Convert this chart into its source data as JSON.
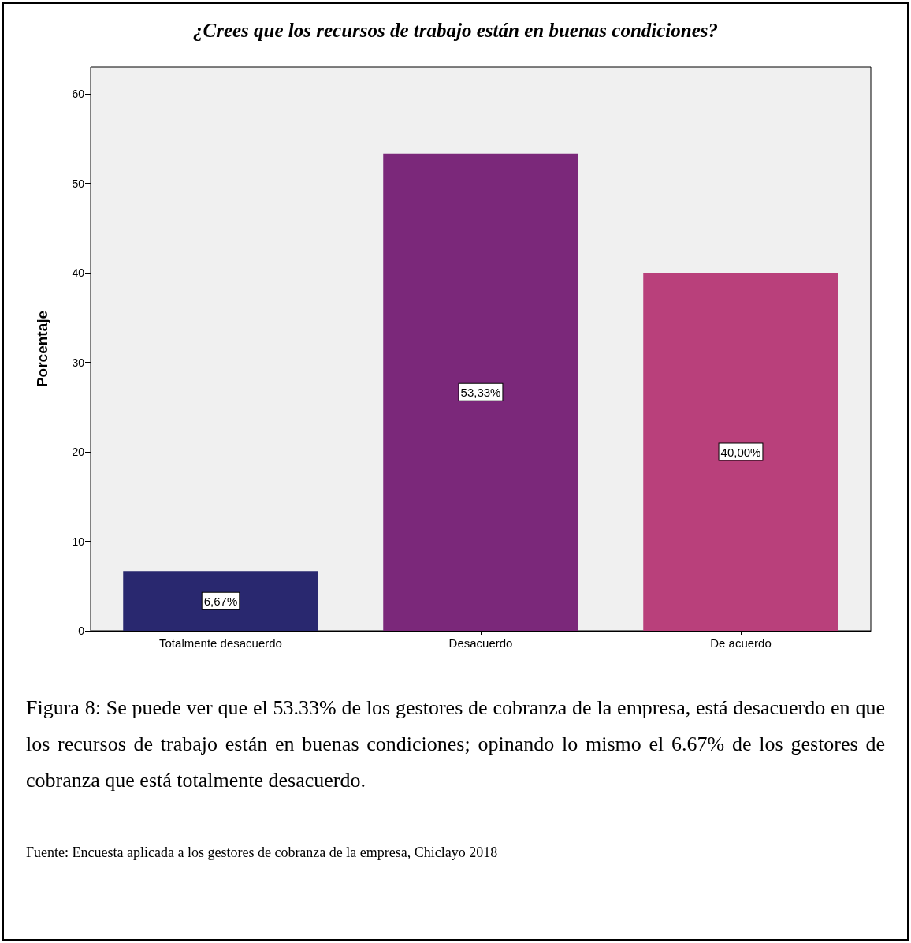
{
  "chart_data": {
    "type": "bar",
    "title": "¿Crees que los recursos de trabajo están en buenas condiciones?",
    "ylabel": "Porcentaje",
    "categories": [
      "Totalmente desacuerdo",
      "Desacuerdo",
      "De acuerdo"
    ],
    "values": [
      6.67,
      53.33,
      40.0
    ],
    "colors": [
      "#29286f",
      "#7b287a",
      "#b9407b"
    ],
    "value_labels": [
      "6,67%",
      "53,33%",
      "40,00%"
    ],
    "ylim": [
      0,
      63
    ],
    "yticks": [
      0,
      10,
      20,
      30,
      40,
      50,
      60
    ],
    "grid": false,
    "annotations": [
      "Figura 8: Se puede ver que el 53.33% de los gestores de cobranza de la empresa, está desacuerdo en que los recursos de trabajo están en buenas condiciones; opinando lo mismo el 6.67% de los gestores de cobranza que está totalmente desacuerdo.",
      "Fuente: Encuesta aplicada a los gestores de cobranza de la empresa, Chiclayo 2018"
    ]
  }
}
